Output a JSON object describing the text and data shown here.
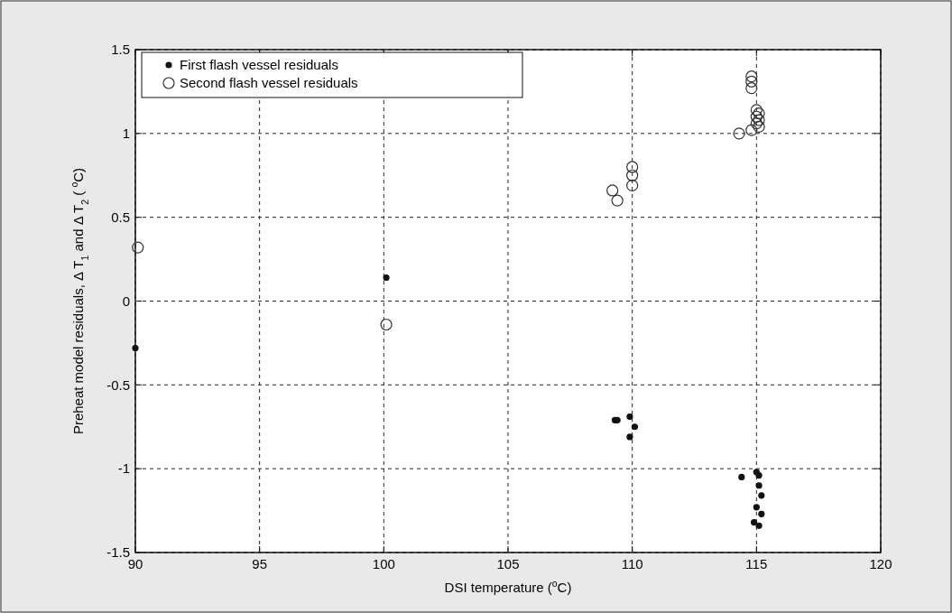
{
  "chart_data": {
    "type": "scatter",
    "xlabel": "DSI temperature ($^{o}$C)",
    "ylabel": "Preheat model residuals, Δ T$_{1}$ and Δ T$_{2}$ ( $^{o}$C)",
    "xlim": [
      90,
      120
    ],
    "xticks": [
      90,
      95,
      100,
      105,
      110,
      115,
      120
    ],
    "ylim": [
      -1.5,
      1.5
    ],
    "yticks": [
      -1.5,
      -1,
      -0.5,
      0,
      0.5,
      1,
      1.5
    ],
    "grid": true,
    "legend": "top left",
    "marker": "circle",
    "series": [
      {
        "name": "First flash vessel residuals",
        "color": "#111111",
        "x": [
          90.0,
          100.1,
          109.3,
          109.4,
          109.9,
          110.1,
          109.9,
          114.4,
          115.0,
          115.1,
          115.1,
          115.2,
          115.0,
          115.2,
          114.9,
          115.1
        ],
        "values": [
          -0.28,
          0.14,
          -0.71,
          -0.71,
          -0.69,
          -0.75,
          -0.81,
          -1.05,
          -1.02,
          -1.04,
          -1.1,
          -1.16,
          -1.23,
          -1.27,
          -1.32,
          -1.34
        ]
      },
      {
        "name": "Second flash vessel residuals",
        "color": "#333333",
        "x": [
          90.1,
          100.1,
          110.0,
          110.0,
          110.0,
          109.2,
          109.4,
          114.8,
          114.8,
          114.8,
          115.0,
          115.1,
          115.0,
          115.1,
          115.0,
          115.1,
          114.3,
          114.8
        ],
        "values": [
          0.32,
          -0.14,
          0.8,
          0.75,
          0.69,
          0.66,
          0.6,
          1.34,
          1.31,
          1.27,
          1.14,
          1.12,
          1.1,
          1.08,
          1.06,
          1.04,
          1.0,
          1.02
        ]
      }
    ]
  }
}
